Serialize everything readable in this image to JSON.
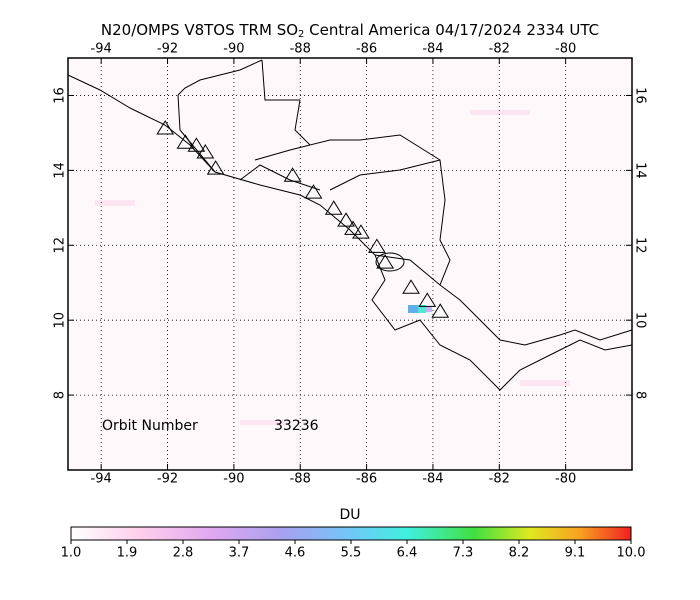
{
  "map": {
    "title": [
      "N20/OMPS V8TOS TRM SO",
      "2",
      " Central America 04/17/2024 2334 UTC"
    ],
    "xlim": [
      -95,
      -78
    ],
    "ylim": [
      6,
      17
    ],
    "xticks": [
      -94,
      -92,
      -90,
      -88,
      -86,
      -84,
      -82,
      -80
    ],
    "yticks": [
      8,
      10,
      12,
      14,
      16
    ],
    "grid": true,
    "orbit_label": "Orbit Number",
    "orbit_number": 33236,
    "volcanoes": [
      [
        -92.07,
        15.13
      ],
      [
        -91.46,
        14.75
      ],
      [
        -91.13,
        14.67
      ],
      [
        -90.86,
        14.49
      ],
      [
        -90.55,
        14.06
      ],
      [
        -88.23,
        13.87
      ],
      [
        -87.6,
        13.42
      ],
      [
        -86.99,
        12.99
      ],
      [
        -86.62,
        12.67
      ],
      [
        -86.41,
        12.45
      ],
      [
        -86.17,
        12.35
      ],
      [
        -85.69,
        11.97
      ],
      [
        -85.44,
        11.55
      ],
      [
        -84.66,
        10.88
      ],
      [
        -84.17,
        10.53
      ],
      [
        -83.78,
        10.24
      ]
    ],
    "colorbar": {
      "label": "DU",
      "lim": [
        1,
        10
      ],
      "ticks": [
        {
          "value": 1,
          "label": "1.0"
        },
        {
          "value": 1.9,
          "label": "1.9"
        },
        {
          "value": 2.8,
          "label": "2.8"
        },
        {
          "value": 3.7,
          "label": "3.7"
        },
        {
          "value": 4.6,
          "label": "4.6"
        },
        {
          "value": 5.5,
          "label": "5.5"
        },
        {
          "value": 6.4,
          "label": "6.4"
        },
        {
          "value": 7.3,
          "label": "7.3"
        },
        {
          "value": 8.2,
          "label": "8.2"
        },
        {
          "value": 9.1,
          "label": "9.1"
        },
        {
          "value": 10,
          "label": "10.0"
        }
      ]
    }
  }
}
